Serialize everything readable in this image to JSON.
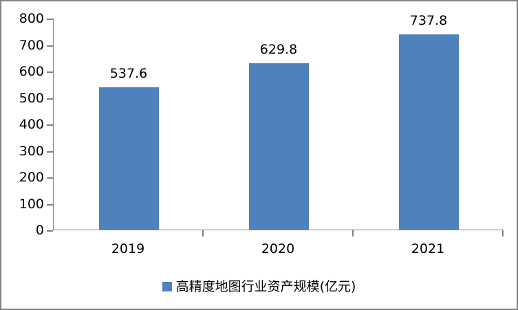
{
  "chart_data": {
    "type": "bar",
    "title": "",
    "categories": [
      "2019",
      "2020",
      "2021"
    ],
    "values": [
      537.6,
      629.8,
      737.8
    ],
    "data_labels": [
      "537.6",
      "629.8",
      "737.8"
    ],
    "series_name": "高精度地图行业资产规模(亿元)",
    "ylim": [
      0,
      800
    ],
    "yticks": [
      0,
      100,
      200,
      300,
      400,
      500,
      600,
      700,
      800
    ],
    "grid": "off",
    "legend_position": "bottom",
    "bar_color": "#4F81BD",
    "axis_color": "#808080",
    "text_color": "#000000",
    "background_color": "#FFFFFF",
    "frame_border_color": "#808080"
  }
}
